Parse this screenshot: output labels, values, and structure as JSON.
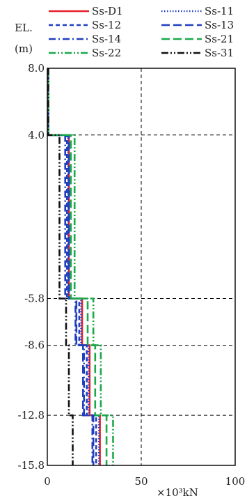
{
  "chart_data": {
    "type": "line",
    "title": "",
    "ylabel_line1": "EL.",
    "ylabel_line2": "(m)",
    "xlabel": "×10³kN",
    "xlim": [
      0,
      100
    ],
    "ylim": [
      -15.8,
      8.0
    ],
    "x_ticks": [
      "0",
      "50",
      "100"
    ],
    "y_ticks": [
      "8.0",
      "4.0",
      "-5.8",
      "-8.6",
      "-12.8",
      "-15.8"
    ],
    "y_tick_values": [
      8.0,
      4.0,
      -5.8,
      -8.6,
      -12.8,
      -15.8
    ],
    "grid": "dashed",
    "legend_position": "top",
    "series": [
      {
        "name": "Ss-D1",
        "color": "#e8202a",
        "dash": "solid",
        "values": [
          [
            0.5,
            8.0
          ],
          [
            0.5,
            4.0
          ],
          [
            11.5,
            4.0
          ],
          [
            11.5,
            -5.8
          ],
          [
            18.5,
            -5.8
          ],
          [
            18.5,
            -8.6
          ],
          [
            22.5,
            -8.6
          ],
          [
            22.5,
            -12.8
          ],
          [
            28.0,
            -12.8
          ],
          [
            28.0,
            -15.8
          ]
        ]
      },
      {
        "name": "Ss-11",
        "color": "#1f3fbf",
        "dash": "dotted",
        "values": [
          [
            0.5,
            8.0
          ],
          [
            0.5,
            4.0
          ],
          [
            11.0,
            4.0
          ],
          [
            11.0,
            -5.8
          ],
          [
            18.0,
            -5.8
          ],
          [
            18.0,
            -8.6
          ],
          [
            22.0,
            -8.6
          ],
          [
            22.0,
            -12.8
          ],
          [
            27.5,
            -12.8
          ],
          [
            27.5,
            -15.8
          ]
        ]
      },
      {
        "name": "Ss-12",
        "color": "#1f3fbf",
        "dash": "shortdash",
        "values": [
          [
            0.5,
            8.0
          ],
          [
            0.5,
            4.0
          ],
          [
            10.5,
            4.0
          ],
          [
            10.5,
            -5.8
          ],
          [
            17.0,
            -5.8
          ],
          [
            17.0,
            -8.6
          ],
          [
            21.0,
            -8.6
          ],
          [
            21.0,
            -12.8
          ],
          [
            26.0,
            -12.8
          ],
          [
            26.0,
            -15.8
          ]
        ]
      },
      {
        "name": "Ss-13",
        "color": "#1f3fbf",
        "dash": "longdash",
        "values": [
          [
            0.5,
            8.0
          ],
          [
            0.5,
            4.0
          ],
          [
            11.5,
            4.0
          ],
          [
            11.5,
            -5.8
          ],
          [
            15.5,
            -5.8
          ],
          [
            15.5,
            -8.6
          ],
          [
            19.0,
            -8.6
          ],
          [
            19.0,
            -12.8
          ],
          [
            24.5,
            -12.8
          ],
          [
            24.5,
            -15.8
          ]
        ]
      },
      {
        "name": "Ss-14",
        "color": "#1f3fbf",
        "dash": "dashdot",
        "values": [
          [
            0.5,
            8.0
          ],
          [
            0.5,
            4.0
          ],
          [
            9.5,
            4.0
          ],
          [
            9.5,
            -5.8
          ],
          [
            15.0,
            -5.8
          ],
          [
            15.0,
            -8.6
          ],
          [
            19.5,
            -8.6
          ],
          [
            19.5,
            -12.8
          ],
          [
            24.0,
            -12.8
          ],
          [
            24.0,
            -15.8
          ]
        ]
      },
      {
        "name": "Ss-21",
        "color": "#1aa84a",
        "dash": "longdash",
        "values": [
          [
            0.5,
            8.0
          ],
          [
            0.5,
            4.0
          ],
          [
            12.5,
            4.0
          ],
          [
            12.5,
            -5.8
          ],
          [
            21.5,
            -5.8
          ],
          [
            21.5,
            -8.6
          ],
          [
            25.5,
            -8.6
          ],
          [
            25.5,
            -12.8
          ],
          [
            31.5,
            -12.8
          ],
          [
            31.5,
            -15.8
          ]
        ]
      },
      {
        "name": "Ss-22",
        "color": "#1aa84a",
        "dash": "dashdotdot",
        "values": [
          [
            0.5,
            8.0
          ],
          [
            0.5,
            4.0
          ],
          [
            14.5,
            4.0
          ],
          [
            14.5,
            -5.8
          ],
          [
            24.5,
            -5.8
          ],
          [
            24.5,
            -8.6
          ],
          [
            28.5,
            -8.6
          ],
          [
            28.5,
            -12.8
          ],
          [
            35.0,
            -12.8
          ],
          [
            35.0,
            -15.8
          ]
        ]
      },
      {
        "name": "Ss-31",
        "color": "#111111",
        "dash": "dashdotdot",
        "values": [
          [
            0.5,
            8.0
          ],
          [
            0.5,
            4.0
          ],
          [
            6.5,
            4.0
          ],
          [
            6.5,
            -5.8
          ],
          [
            10.0,
            -5.8
          ],
          [
            10.0,
            -8.6
          ],
          [
            11.5,
            -8.6
          ],
          [
            11.5,
            -12.8
          ],
          [
            13.5,
            -12.8
          ],
          [
            13.5,
            -15.8
          ]
        ]
      }
    ]
  }
}
